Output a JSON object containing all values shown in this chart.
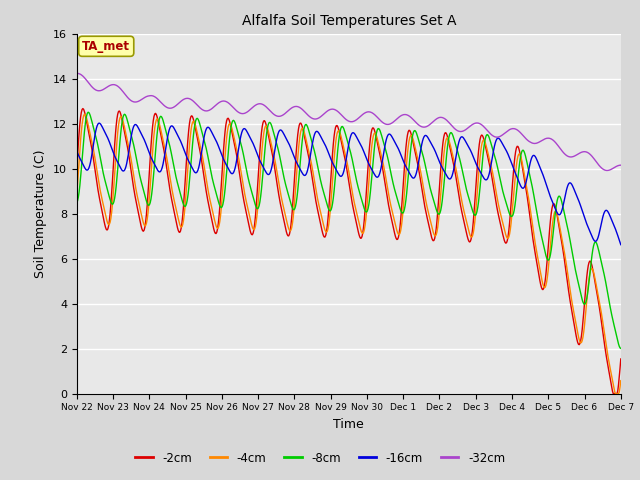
{
  "title": "Alfalfa Soil Temperatures Set A",
  "xlabel": "Time",
  "ylabel": "Soil Temperature (C)",
  "ylim": [
    0,
    16
  ],
  "background_color": "#d8d8d8",
  "plot_bg_color": "#e8e8e8",
  "line_colors": {
    "-2cm": "#dd0000",
    "-4cm": "#ff8800",
    "-8cm": "#00cc00",
    "-16cm": "#0000dd",
    "-32cm": "#aa44cc"
  },
  "legend_labels": [
    "-2cm",
    "-4cm",
    "-8cm",
    "-16cm",
    "-32cm"
  ],
  "annotation_text": "TA_met",
  "annotation_color": "#aa0000",
  "annotation_bg": "#ffffaa",
  "n_points": 720
}
